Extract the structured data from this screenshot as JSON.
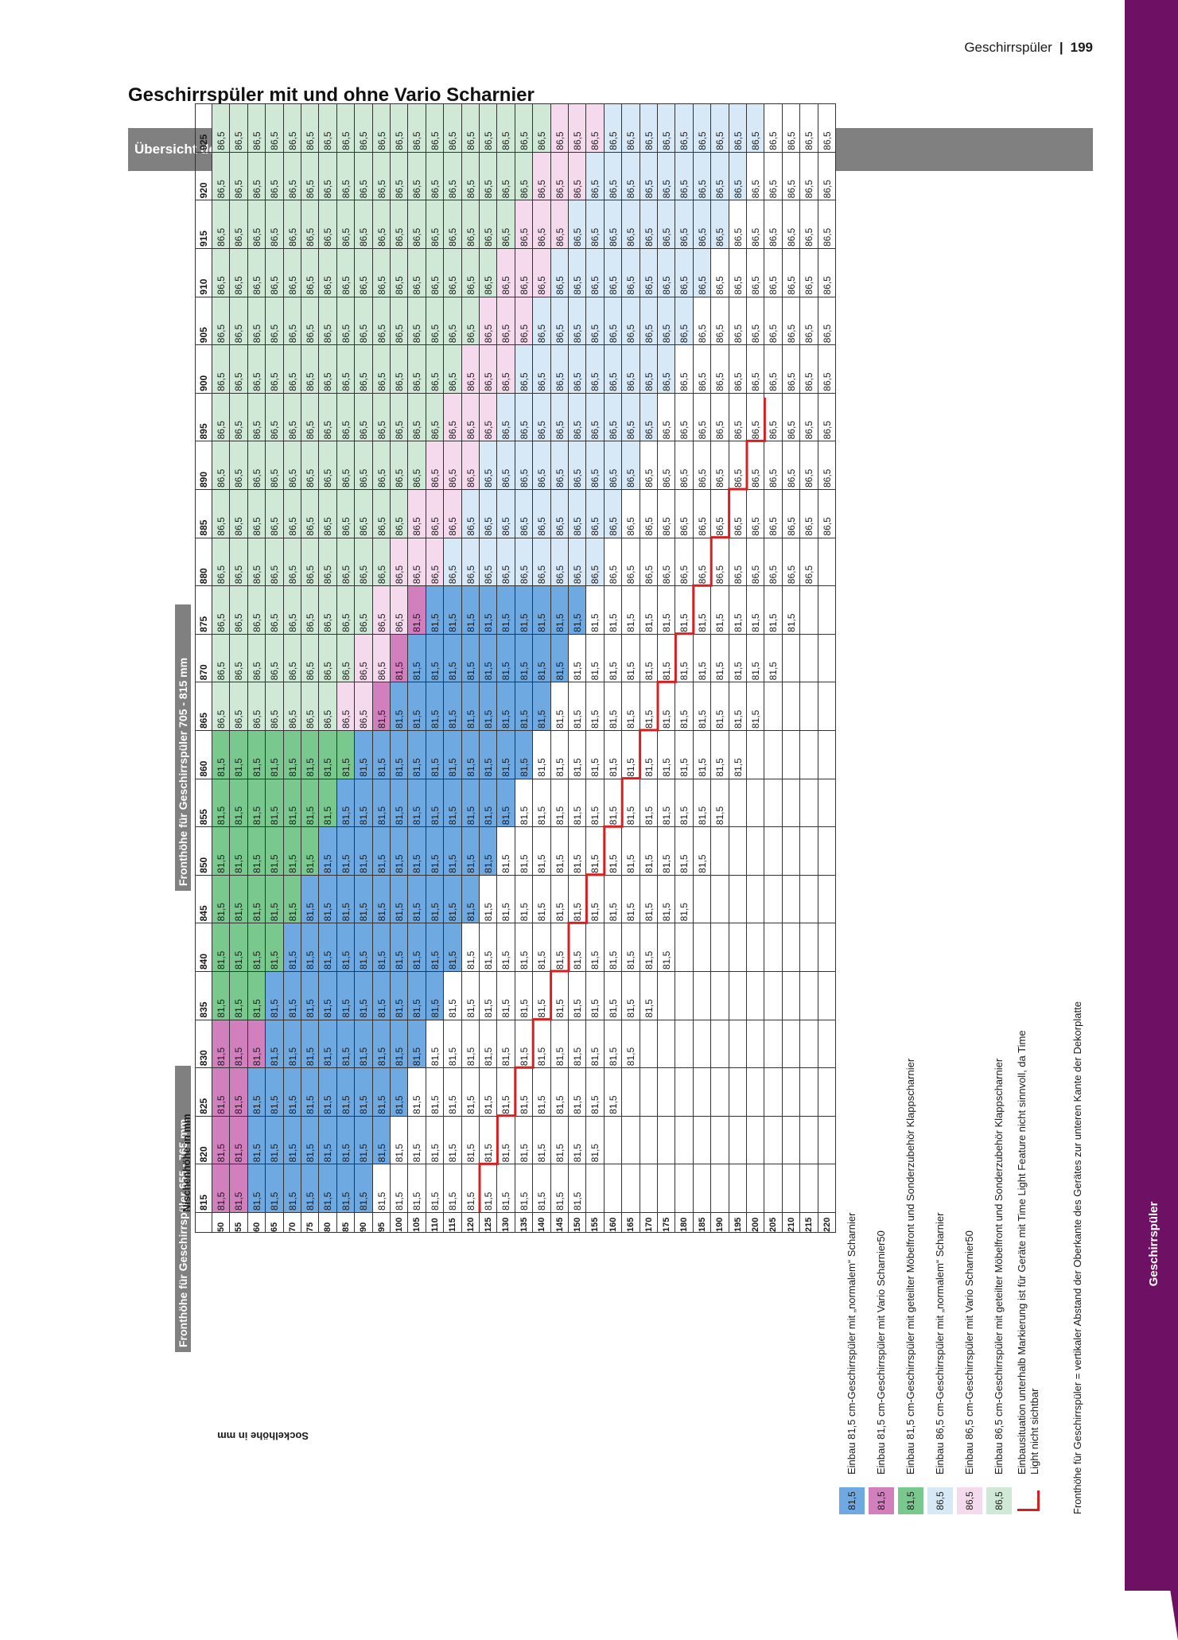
{
  "header": {
    "section": "Geschirrspüler",
    "page": "199"
  },
  "page_title": "Geschirrspüler mit und ohne Vario Scharnier",
  "section_bar": "Übersicht der Geschirrspüler mit und ohne Vario Scharnier",
  "side_tab": "Geschirrspüler",
  "table": {
    "label_front_655_765": "Fronthöhe für Geschirrspüler 655 - 765 mm",
    "label_front_705_815": "Fronthöhe für Geschirrspüler 705 - 815 mm",
    "axis_nischenhoehe": "Nischenhöhe in mm",
    "axis_sockelhoehe": "Sockelhöhe in mm",
    "socket_heights": [
      "50",
      "55",
      "60",
      "65",
      "70",
      "75",
      "80",
      "85",
      "90",
      "95",
      "100",
      "105",
      "110",
      "115",
      "120",
      "125",
      "130",
      "135",
      "140",
      "145",
      "150",
      "155",
      "160",
      "165",
      "170",
      "175",
      "180",
      "185",
      "190",
      "195",
      "200",
      "205",
      "210",
      "215",
      "220"
    ],
    "niche_heights": [
      "815",
      "820",
      "825",
      "830",
      "835",
      "840",
      "845",
      "850",
      "855",
      "860",
      "865",
      "870",
      "875",
      "880",
      "885",
      "890",
      "895",
      "900",
      "905",
      "910",
      "915",
      "920",
      "925"
    ]
  },
  "legend": [
    {
      "value": "81,5",
      "color": "#6fa9e2",
      "text": "Einbau 81,5 cm-Geschirrspüler mit „normalem“ Scharnier"
    },
    {
      "value": "81,5",
      "color": "#d27fbe",
      "text": "Einbau 81,5 cm-Geschirrspüler mit Vario Scharnier50"
    },
    {
      "value": "81,5",
      "color": "#79c88e",
      "text": "Einbau 81,5 cm-Geschirrspüler mit geteilter Möbelfront und Sonderzubehör Klappscharnier"
    },
    {
      "value": "86,5",
      "color": "#d7e8f6",
      "text": "Einbau 86,5 cm-Geschirrspüler mit „normalem“ Scharnier"
    },
    {
      "value": "86,5",
      "color": "#f5d9ed",
      "text": "Einbau 86,5 cm-Geschirrspüler mit Vario Scharnier50"
    },
    {
      "value": "86,5",
      "color": "#cfe9d6",
      "text": "Einbau 86,5 cm-Geschirrspüler mit geteilter Möbelfront und Sonderzubehör Klappscharnier"
    }
  ],
  "legend_marker_text_1": "Einbausituation unterhalb Markierung ist für Geräte mit Time Light Feature nicht sinnvoll, da Time",
  "legend_marker_text_2": "Light nicht sichtbar",
  "footnote": "Fronthöhe für Geschirrspüler = vertikaler Abstand der Oberkante des Gerätes zur unteren Kante der Dekorplatte",
  "cell_values": {
    "low": "81,5",
    "high": "86,5"
  }
}
